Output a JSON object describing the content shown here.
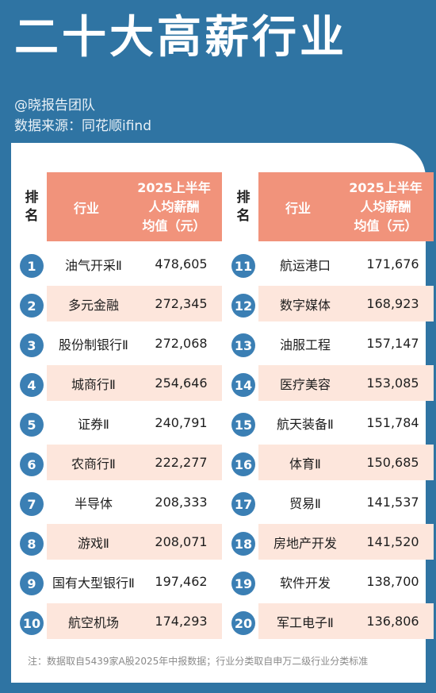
{
  "header": {
    "title": "二十大高薪行业",
    "author": "@晓报告团队",
    "source": "数据来源：同花顺ifind"
  },
  "table": {
    "rank_header": [
      "排",
      "名"
    ],
    "industry_header": "行业",
    "salary_header": [
      "2025上半年",
      "人均薪酬",
      "均值（元）"
    ],
    "rows": [
      {
        "rank": "1",
        "industry": "油气开采Ⅱ",
        "salary": "478,605"
      },
      {
        "rank": "2",
        "industry": "多元金融",
        "salary": "272,345"
      },
      {
        "rank": "3",
        "industry": "股份制银行Ⅱ",
        "salary": "272,068"
      },
      {
        "rank": "4",
        "industry": "城商行Ⅱ",
        "salary": "254,646"
      },
      {
        "rank": "5",
        "industry": "证券Ⅱ",
        "salary": "240,791"
      },
      {
        "rank": "6",
        "industry": "农商行Ⅱ",
        "salary": "222,277"
      },
      {
        "rank": "7",
        "industry": "半导体",
        "salary": "208,333"
      },
      {
        "rank": "8",
        "industry": "游戏Ⅱ",
        "salary": "208,071"
      },
      {
        "rank": "9",
        "industry": "国有大型银行Ⅱ",
        "salary": "197,462"
      },
      {
        "rank": "10",
        "industry": "航空机场",
        "salary": "174,293"
      },
      {
        "rank": "11",
        "industry": "航运港口",
        "salary": "171,676"
      },
      {
        "rank": "12",
        "industry": "数字媒体",
        "salary": "168,923"
      },
      {
        "rank": "13",
        "industry": "油服工程",
        "salary": "157,147"
      },
      {
        "rank": "14",
        "industry": "医疗美容",
        "salary": "153,085"
      },
      {
        "rank": "15",
        "industry": "航天装备Ⅱ",
        "salary": "151,784"
      },
      {
        "rank": "16",
        "industry": "体育Ⅱ",
        "salary": "150,685"
      },
      {
        "rank": "17",
        "industry": "贸易Ⅱ",
        "salary": "141,537"
      },
      {
        "rank": "18",
        "industry": "房地产开发",
        "salary": "141,520"
      },
      {
        "rank": "19",
        "industry": "软件开发",
        "salary": "138,700"
      },
      {
        "rank": "20",
        "industry": "军工电子Ⅱ",
        "salary": "136,806"
      }
    ]
  },
  "footnote": "注：数据取自5439家A股2025年中报数据；行业分类取自申万二级行业分类标准",
  "colors": {
    "background": "#2f74a3",
    "header_fill": "#f1937b",
    "alt_row_fill": "#fde6dc",
    "badge": "#3b7fb4"
  }
}
